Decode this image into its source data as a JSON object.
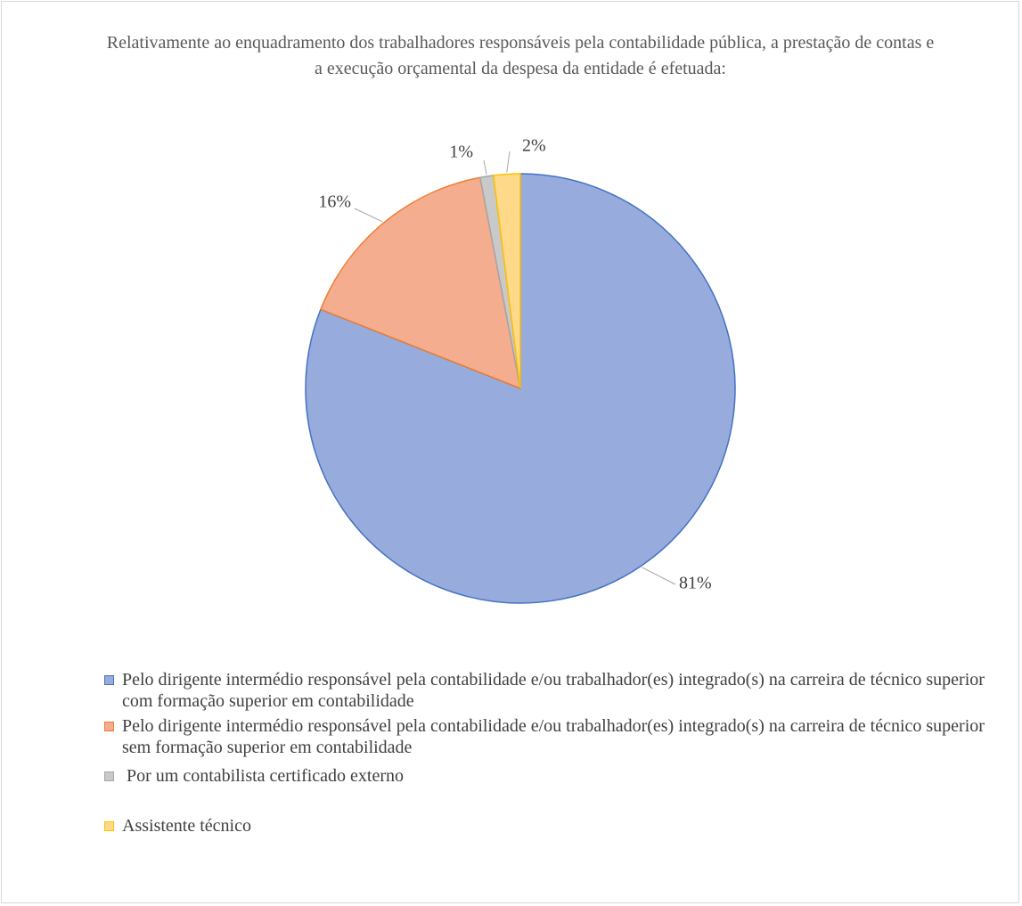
{
  "chart_data": {
    "type": "pie",
    "title": "Relativamente ao enquadramento dos trabalhadores responsáveis pela contabilidade pública, a prestação de contas e a execução orçamental da despesa da entidade é efetuada:",
    "categories": [
      "Pelo dirigente intermédio responsável pela contabilidade e/ou trabalhador(es) integrado(s) na carreira de técnico superior com formação superior em contabilidade",
      "Pelo dirigente intermédio responsável pela contabilidade e/ou trabalhador(es) integrado(s) na carreira de técnico superior sem formação superior em contabilidade",
      " Por um contabilista certificado externo",
      "Assistente técnico"
    ],
    "values": [
      81,
      16,
      1,
      2
    ],
    "value_labels": [
      "81%",
      "16%",
      "1%",
      "2%"
    ],
    "colors": [
      "#97abdc",
      "#f5ad8f",
      "#c9c9c9",
      "#ffd98a"
    ],
    "edge_colors": [
      "#4472c4",
      "#ed7d31",
      "#a5a5a5",
      "#ffc000"
    ]
  }
}
